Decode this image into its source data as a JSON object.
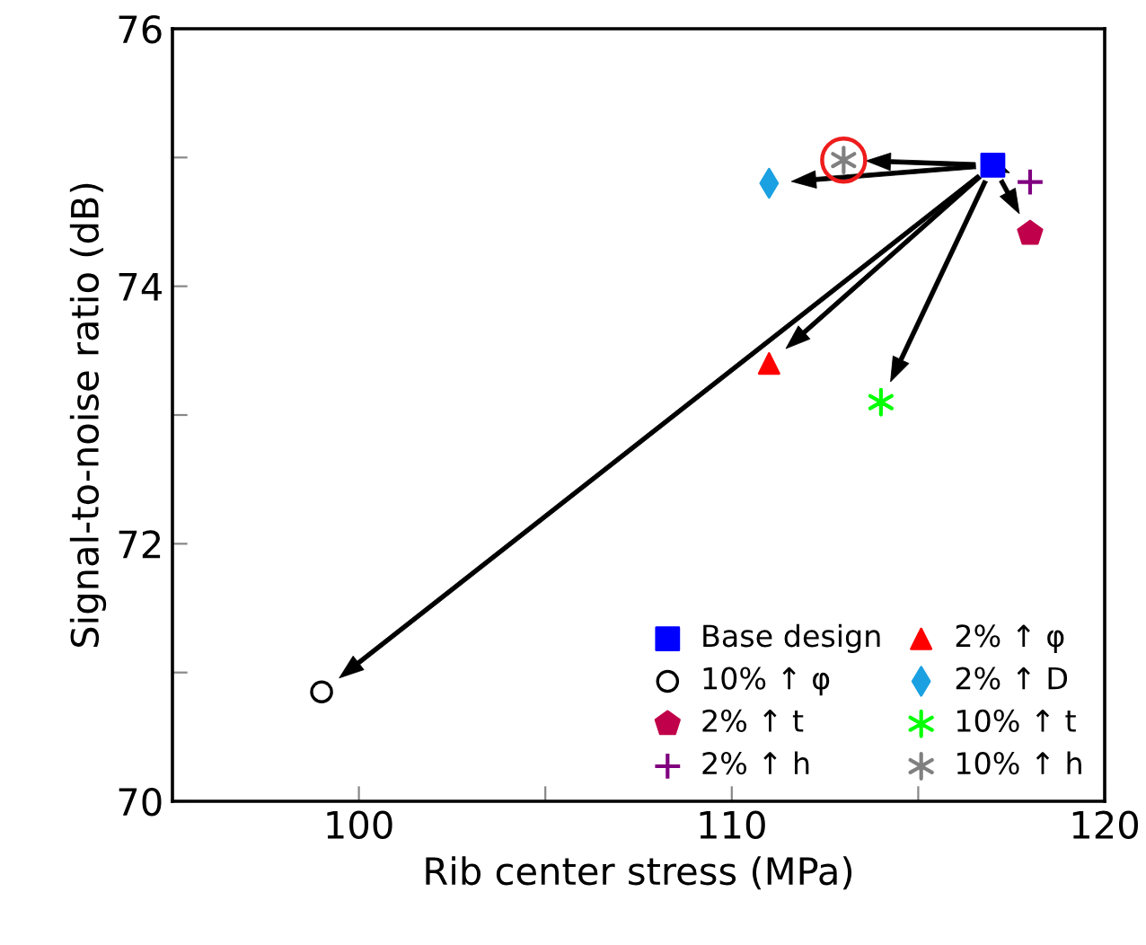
{
  "chart_data": {
    "type": "scatter",
    "xlabel": "Rib center stress (MPa)",
    "ylabel": "Signal-to-noise ratio (dB)",
    "xlim": [
      95,
      120
    ],
    "ylim": [
      70,
      76
    ],
    "xticks": [
      100,
      {
        "value": 105,
        "label": null
      },
      110,
      {
        "value": 115,
        "label": null
      },
      120
    ],
    "yticks": [
      70,
      {
        "value": 71,
        "label": null
      },
      72,
      {
        "value": 73,
        "label": null
      },
      74,
      {
        "value": 75,
        "label": null
      },
      76
    ],
    "grid": false,
    "legend": "bottom right",
    "series": [
      {
        "name": "Base design",
        "color": "#0000ff",
        "marker": "square",
        "x": [
          117.0
        ],
        "values": [
          74.94
        ]
      },
      {
        "name": "2% ↑ φ",
        "color": "#ff0000",
        "marker": "triangle",
        "x": [
          111.0
        ],
        "values": [
          73.4
        ]
      },
      {
        "name": "10% ↑ φ",
        "color": "#000000",
        "marker": "circle",
        "x": [
          99.0
        ],
        "values": [
          70.85
        ]
      },
      {
        "name": "2% ↑ D",
        "color": "#1ba1e2",
        "marker": "diamond",
        "x": [
          111.0
        ],
        "values": [
          74.8
        ]
      },
      {
        "name": "2% ↑ t",
        "color": "#c0004a",
        "x": [
          118.0
        ],
        "values": [
          74.41
        ]
      },
      {
        "name": "10% ↑ t",
        "color": "#00ff00",
        "marker": "cross",
        "x": [
          114.0
        ],
        "values": [
          73.1
        ]
      },
      {
        "name": "2% ↑ h",
        "color": "#800080",
        "marker": "plus",
        "x": [
          118.0
        ],
        "values": [
          74.81
        ]
      },
      {
        "name": "10% ↑ h",
        "color": "#808080",
        "marker": "cross",
        "x": [
          113.0
        ],
        "values": [
          74.98
        ]
      }
    ]
  }
}
